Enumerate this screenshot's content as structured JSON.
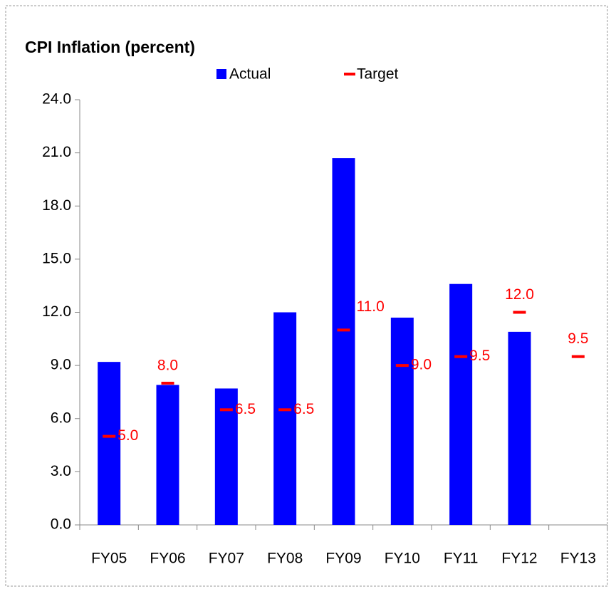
{
  "chart_data": {
    "type": "bar",
    "title": "CPI Inflation (percent)",
    "categories": [
      "FY05",
      "FY06",
      "FY07",
      "FY08",
      "FY09",
      "FY10",
      "FY11",
      "FY12",
      "FY13"
    ],
    "series": [
      {
        "name": "Actual",
        "type": "bar",
        "color": "#0000ff",
        "values": [
          9.2,
          7.9,
          7.7,
          12.0,
          20.7,
          11.7,
          13.6,
          10.9,
          null
        ]
      },
      {
        "name": "Target",
        "type": "marker",
        "color": "#ff0000",
        "values": [
          5.0,
          8.0,
          6.5,
          6.5,
          11.0,
          9.0,
          9.5,
          12.0,
          9.5
        ],
        "value_labels": [
          "5.0",
          "8.0",
          "6.5",
          "6.5",
          "11.0",
          "9.0",
          "9.5",
          "12.0",
          "9.5"
        ]
      }
    ],
    "ylim": [
      0,
      24
    ],
    "yticks": [
      {
        "value": 0,
        "label": "0.0"
      },
      {
        "value": 3,
        "label": "3.0"
      },
      {
        "value": 6,
        "label": "6.0"
      },
      {
        "value": 9,
        "label": "9.0"
      },
      {
        "value": 12,
        "label": "12.0"
      },
      {
        "value": 15,
        "label": "15.0"
      },
      {
        "value": 18,
        "label": "18.0"
      },
      {
        "value": 21,
        "label": "21.0"
      },
      {
        "value": 24,
        "label": "24.0"
      }
    ],
    "grid": false,
    "legend": "top"
  }
}
